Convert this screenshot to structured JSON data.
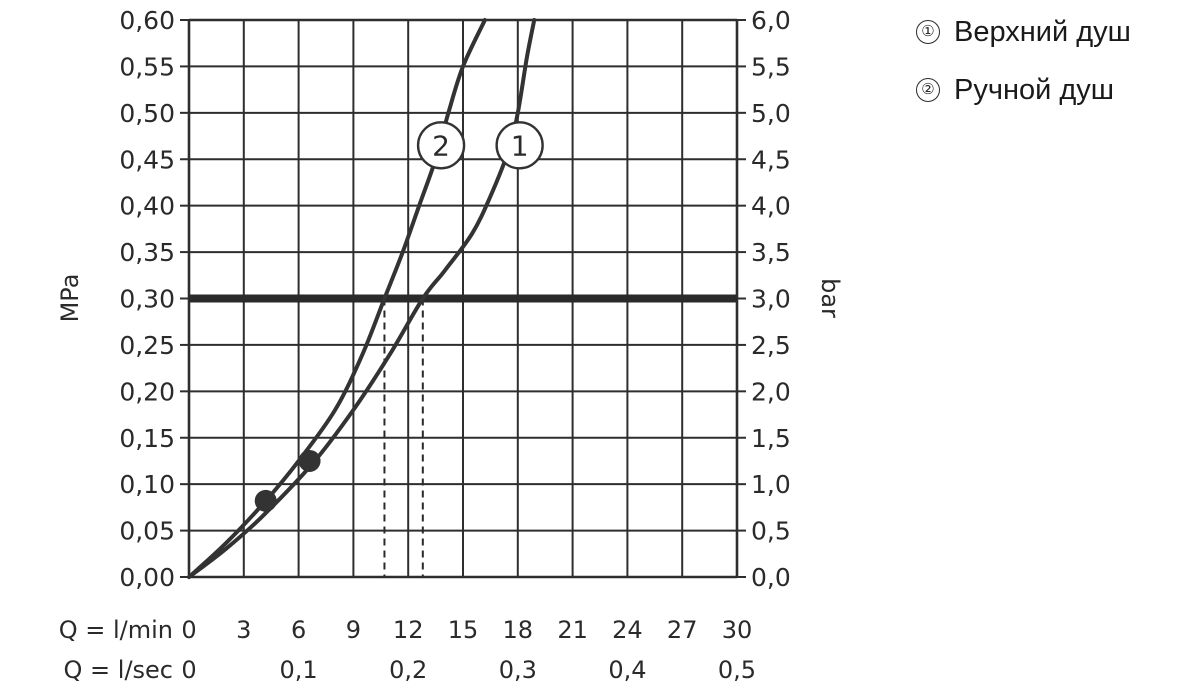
{
  "chart_data": {
    "type": "line",
    "ylabel_left": "MPa",
    "ylabel_right": "bar",
    "xlabel_min": "Q = l/min",
    "xlabel_sec": "Q = l/sec",
    "xlim": [
      0,
      30
    ],
    "ylim": [
      0,
      0.6
    ],
    "grid": true,
    "x_ticks_min": [
      "0",
      "3",
      "6",
      "9",
      "12",
      "15",
      "18",
      "21",
      "24",
      "27",
      "30"
    ],
    "x_ticks_sec": [
      {
        "x": 0,
        "label": "0"
      },
      {
        "x": 6,
        "label": "0,1"
      },
      {
        "x": 12,
        "label": "0,2"
      },
      {
        "x": 18,
        "label": "0,3"
      },
      {
        "x": 24,
        "label": "0,4"
      },
      {
        "x": 30,
        "label": "0,5"
      }
    ],
    "y_ticks_left": [
      "0,00",
      "0,05",
      "0,10",
      "0,15",
      "0,20",
      "0,25",
      "0,30",
      "0,35",
      "0,40",
      "0,45",
      "0,50",
      "0,55",
      "0,60"
    ],
    "y_ticks_right": [
      "0,0",
      "0,5",
      "1,0",
      "1,5",
      "2,0",
      "2,5",
      "3,0",
      "3,5",
      "4,0",
      "4,5",
      "5,0",
      "5,5",
      "6,0"
    ],
    "reference_line": {
      "y": 0.3
    },
    "reference_flows": [
      10.7,
      12.8
    ],
    "series": [
      {
        "name": "1",
        "label_at": {
          "x": 18.1,
          "y": 0.465
        },
        "points": [
          [
            0,
            0
          ],
          [
            2,
            0.03
          ],
          [
            4,
            0.065
          ],
          [
            6.8,
            0.123
          ],
          [
            9,
            0.18
          ],
          [
            11,
            0.24
          ],
          [
            12.8,
            0.3
          ],
          [
            14,
            0.33
          ],
          [
            15.5,
            0.37
          ],
          [
            16.5,
            0.41
          ],
          [
            17.5,
            0.46
          ],
          [
            18,
            0.5
          ],
          [
            18.5,
            0.56
          ],
          [
            18.9,
            0.6
          ]
        ]
      },
      {
        "name": "2",
        "label_at": {
          "x": 13.8,
          "y": 0.465
        },
        "points": [
          [
            0,
            0
          ],
          [
            2,
            0.036
          ],
          [
            4.2,
            0.082
          ],
          [
            6,
            0.125
          ],
          [
            8,
            0.18
          ],
          [
            9.5,
            0.24
          ],
          [
            10.7,
            0.3
          ],
          [
            11.7,
            0.35
          ],
          [
            12.6,
            0.4
          ],
          [
            13.5,
            0.45
          ],
          [
            14.2,
            0.5
          ],
          [
            15,
            0.55
          ],
          [
            16.2,
            0.6
          ]
        ]
      }
    ],
    "markers": [
      {
        "x": 4.2,
        "y": 0.082
      },
      {
        "x": 6.6,
        "y": 0.125
      }
    ]
  },
  "legend": [
    {
      "marker": "①",
      "label": "Верхний душ"
    },
    {
      "marker": "②",
      "label": "Ручной душ"
    }
  ]
}
